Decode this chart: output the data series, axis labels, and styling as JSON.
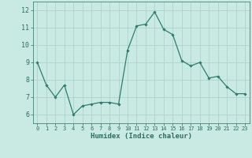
{
  "x": [
    0,
    1,
    2,
    3,
    4,
    5,
    6,
    7,
    8,
    9,
    10,
    11,
    12,
    13,
    14,
    15,
    16,
    17,
    18,
    19,
    20,
    21,
    22,
    23
  ],
  "y": [
    9.0,
    7.7,
    7.0,
    7.7,
    6.0,
    6.5,
    6.6,
    6.7,
    6.7,
    6.6,
    9.7,
    11.1,
    11.2,
    11.9,
    10.9,
    10.6,
    9.1,
    8.8,
    9.0,
    8.1,
    8.2,
    7.6,
    7.2,
    7.2
  ],
  "line_color": "#2e7d6e",
  "marker": "D",
  "marker_size": 1.8,
  "bg_color": "#c8eae2",
  "grid_color": "#aacfc8",
  "xlabel": "Humidex (Indice chaleur)",
  "ylim": [
    5.5,
    12.5
  ],
  "xlim": [
    -0.5,
    23.5
  ],
  "yticks": [
    6,
    7,
    8,
    9,
    10,
    11,
    12
  ],
  "xticks": [
    0,
    1,
    2,
    3,
    4,
    5,
    6,
    7,
    8,
    9,
    10,
    11,
    12,
    13,
    14,
    15,
    16,
    17,
    18,
    19,
    20,
    21,
    22,
    23
  ],
  "tick_color": "#2e6e60",
  "label_color": "#2e6e60",
  "x_fontsize": 5.0,
  "y_fontsize": 6.0,
  "xlabel_fontsize": 6.5
}
